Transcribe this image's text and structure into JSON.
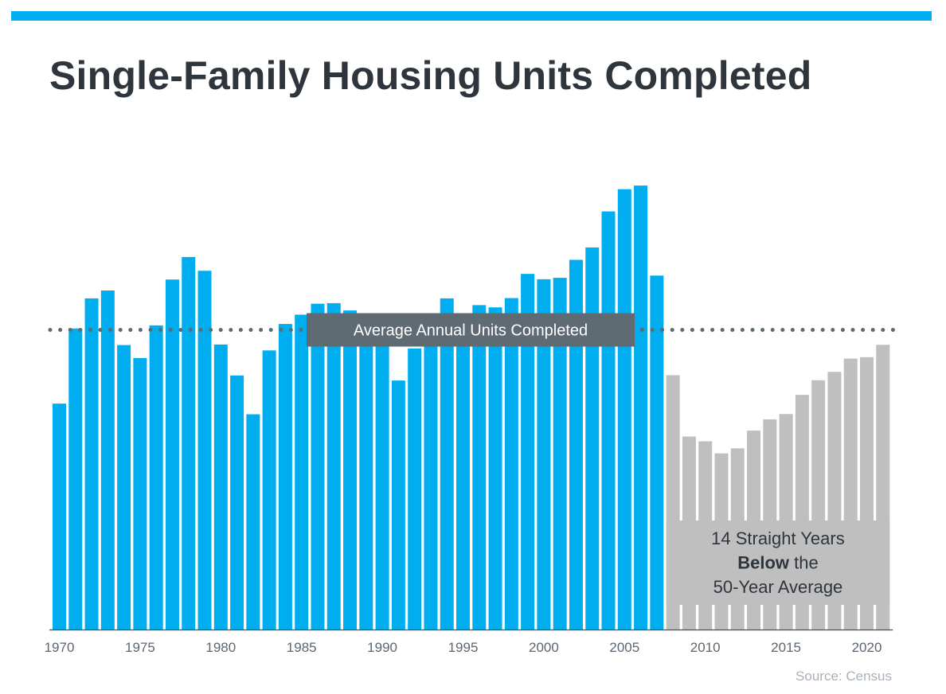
{
  "header": {
    "accent_color": "#00aeef"
  },
  "chart_data": {
    "type": "bar",
    "title": "Single-Family Housing Units Completed",
    "x": [
      1970,
      1971,
      1972,
      1973,
      1974,
      1975,
      1976,
      1977,
      1978,
      1979,
      1980,
      1981,
      1982,
      1983,
      1984,
      1985,
      1986,
      1987,
      1988,
      1989,
      1990,
      1991,
      1992,
      1993,
      1994,
      1995,
      1996,
      1997,
      1998,
      1999,
      2000,
      2001,
      2002,
      2003,
      2004,
      2005,
      2006,
      2007,
      2008,
      2009,
      2010,
      2011,
      2012,
      2013,
      2014,
      2015,
      2016,
      2017,
      2018,
      2019,
      2020,
      2021
    ],
    "values": [
      803,
      1070,
      1177,
      1205,
      1011,
      965,
      1081,
      1244,
      1324,
      1275,
      1013,
      903,
      765,
      992,
      1086,
      1119,
      1158,
      1160,
      1134,
      1077,
      1013,
      885,
      999,
      1079,
      1177,
      1108,
      1153,
      1145,
      1178,
      1264,
      1245,
      1250,
      1314,
      1358,
      1486,
      1565,
      1578,
      1258,
      904,
      686,
      669,
      626,
      644,
      707,
      747,
      766,
      834,
      886,
      916,
      963,
      968,
      1012
    ],
    "ylim": [
      0,
      1700
    ],
    "xticks": [
      "1970",
      "1975",
      "1980",
      "1985",
      "1990",
      "1995",
      "2000",
      "2005",
      "2010",
      "2015",
      "2020"
    ],
    "average_line": {
      "value": 1065,
      "label": "Average Annual Units Completed"
    },
    "highlight": {
      "from": 2008,
      "to": 2021,
      "color": "#bfbfbf",
      "label_lines": [
        [
          {
            "text": "14 Straight Years",
            "bold": false
          }
        ],
        [
          {
            "text": "Below",
            "bold": true
          },
          {
            "text": " the",
            "bold": false
          }
        ],
        [
          {
            "text": "50-Year Average",
            "bold": false
          }
        ]
      ]
    },
    "bar_color": "#00aeef",
    "annotation_box_color": "#5e6b73",
    "grid": false,
    "source": "Source: Census"
  }
}
